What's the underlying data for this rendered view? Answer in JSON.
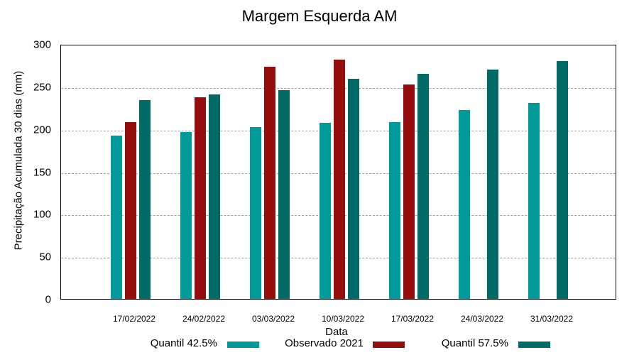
{
  "chart_data": {
    "type": "bar",
    "title": "Margem Esquerda AM",
    "xlabel": "Data",
    "ylabel": "Precipitação Acumulada 30 dias (mm)",
    "ylim": [
      0,
      300
    ],
    "yticks": [
      0,
      50,
      100,
      150,
      200,
      250,
      300
    ],
    "grid": true,
    "legend_position": "bottom",
    "categories": [
      "17/02/2022",
      "24/02/2022",
      "03/03/2022",
      "10/03/2022",
      "17/03/2022",
      "24/03/2022",
      "31/03/2022"
    ],
    "series": [
      {
        "name": "Quantil 42.5%",
        "color": "#009a9a",
        "values": [
          192,
          196,
          202,
          207,
          208,
          222,
          231
        ]
      },
      {
        "name": "Observado 2021",
        "color": "#950e0e",
        "values": [
          208,
          237,
          273,
          282,
          252,
          null,
          null
        ]
      },
      {
        "name": "Quantil 57.5%",
        "color": "#006a66",
        "values": [
          234,
          241,
          246,
          259,
          265,
          270,
          280
        ]
      }
    ]
  }
}
